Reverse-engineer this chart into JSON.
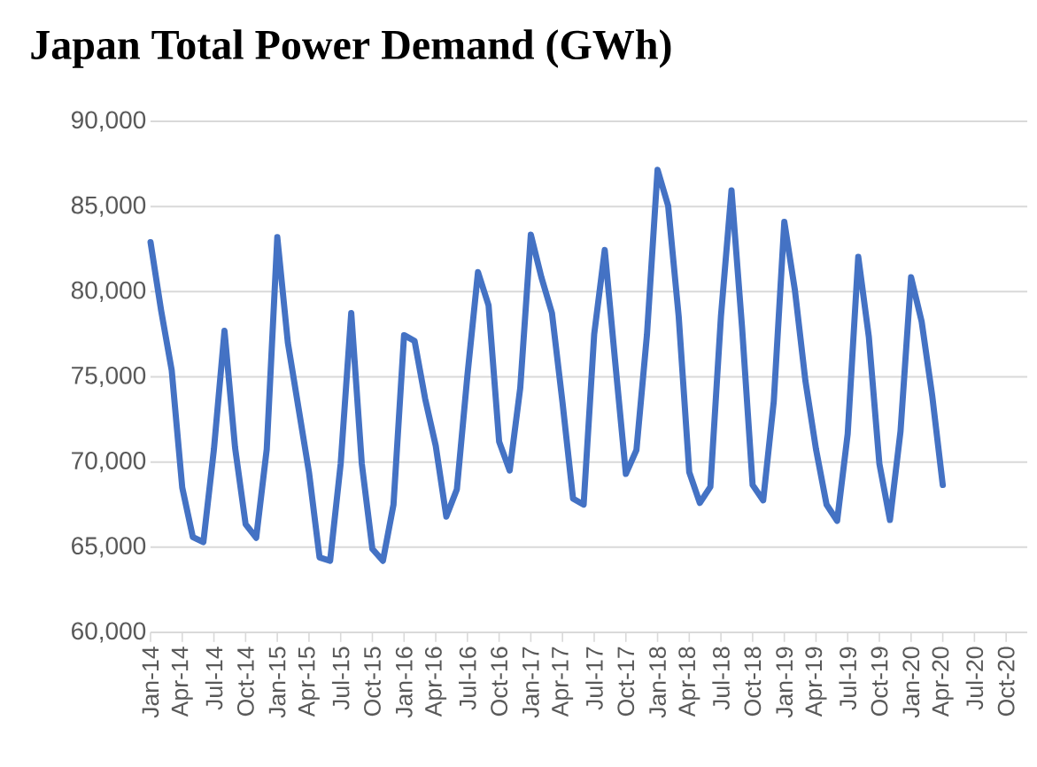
{
  "chart_data": {
    "type": "line",
    "title": "Japan Total Power Demand (GWh)",
    "categories": [
      "Jan-14",
      null,
      null,
      "Apr-14",
      null,
      null,
      "Jul-14",
      null,
      null,
      "Oct-14",
      null,
      null,
      "Jan-15",
      null,
      null,
      "Apr-15",
      null,
      null,
      "Jul-15",
      null,
      null,
      "Oct-15",
      null,
      null,
      "Jan-16",
      null,
      null,
      "Apr-16",
      null,
      null,
      "Jul-16",
      null,
      null,
      "Oct-16",
      null,
      null,
      "Jan-17",
      null,
      null,
      "Apr-17",
      null,
      null,
      "Jul-17",
      null,
      null,
      "Oct-17",
      null,
      null,
      "Jan-18",
      null,
      null,
      "Apr-18",
      null,
      null,
      "Jul-18",
      null,
      null,
      "Oct-18",
      null,
      null,
      "Jan-19",
      null,
      null,
      "Apr-19",
      null,
      null,
      "Jul-19",
      null,
      null,
      "Oct-19",
      null,
      null,
      "Jan-20",
      null,
      null,
      "Apr-20",
      null,
      null,
      "Jul-20",
      null,
      null,
      "Oct-20",
      null,
      null
    ],
    "values": [
      82900,
      78900,
      75400,
      68500,
      65600,
      65300,
      70750,
      77700,
      70850,
      66350,
      65550,
      70750,
      83200,
      77000,
      73200,
      69400,
      64400,
      64200,
      69900,
      78750,
      69900,
      64900,
      64200,
      67500,
      77450,
      77100,
      73700,
      70950,
      66800,
      68400,
      75100,
      81150,
      79200,
      71200,
      69500,
      74350,
      83350,
      80850,
      78750,
      73500,
      67850,
      67500,
      77500,
      82450,
      75800,
      69300,
      70700,
      77500,
      87150,
      85050,
      78550,
      69400,
      67600,
      68550,
      78550,
      85950,
      77900,
      68650,
      67750,
      73550,
      84100,
      80100,
      74750,
      70750,
      67500,
      66550,
      71650,
      82050,
      77350,
      69900,
      66600,
      71800,
      80850,
      78250,
      73900,
      68650,
      null,
      null,
      null,
      null,
      null,
      null,
      null,
      null
    ],
    "color": "#4472c4",
    "ylim": [
      60000,
      90000
    ],
    "yticks": [
      {
        "value": 60000,
        "label": "60,000"
      },
      {
        "value": 65000,
        "label": "65,000"
      },
      {
        "value": 70000,
        "label": "70,000"
      },
      {
        "value": 75000,
        "label": "75,000"
      },
      {
        "value": 80000,
        "label": "80,000"
      },
      {
        "value": 85000,
        "label": "85,000"
      },
      {
        "value": 90000,
        "label": "90,000"
      }
    ],
    "grid": "y"
  }
}
